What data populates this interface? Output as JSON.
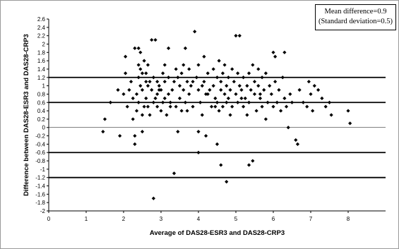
{
  "chart_data": {
    "type": "scatter",
    "xlabel": "Average of DAS28-ESR3 and DAS28-CRP3",
    "ylabel": "Difference between DAS28-ESR3 and DAS28-CRP3",
    "xlim": [
      0,
      9
    ],
    "ylim": [
      -2,
      2.6
    ],
    "x_ticks": [
      "0",
      "1",
      "2",
      "3",
      "4",
      "5",
      "6",
      "7",
      "8"
    ],
    "y_ticks": [
      "-2",
      "-1.8",
      "-1.6",
      "-1.4",
      "-1.2",
      "-1",
      "-0.8",
      "-0.6",
      "-0.4",
      "-0.2",
      "0",
      "0.2",
      "0.4",
      "0.6",
      "0.8",
      "1",
      "1.2",
      "1.4",
      "1.6",
      "1.8",
      "2",
      "2.2",
      "2.4",
      "2.6"
    ],
    "reference_lines": [
      1.2,
      0.6,
      -0.6,
      -1.2
    ],
    "annotations": [
      "Mean difference=0.9",
      "(Standard deviation=0.5)"
    ],
    "marker": "diamond",
    "points": [
      [
        1.45,
        -0.1
      ],
      [
        1.5,
        0.2
      ],
      [
        1.65,
        0.6
      ],
      [
        1.85,
        0.9
      ],
      [
        1.9,
        -0.2
      ],
      [
        2.0,
        0.8
      ],
      [
        2.05,
        1.7
      ],
      [
        2.05,
        1.3
      ],
      [
        2.1,
        0.5
      ],
      [
        2.15,
        0.9
      ],
      [
        2.2,
        1.1
      ],
      [
        2.25,
        0.7
      ],
      [
        2.25,
        0.2
      ],
      [
        2.3,
        1.9
      ],
      [
        2.3,
        -0.2
      ],
      [
        2.3,
        -0.4
      ],
      [
        2.35,
        0.4
      ],
      [
        2.35,
        0.8
      ],
      [
        2.4,
        1.9
      ],
      [
        2.4,
        1.5
      ],
      [
        2.4,
        1.2
      ],
      [
        2.4,
        0.6
      ],
      [
        2.45,
        1.8
      ],
      [
        2.45,
        1.4
      ],
      [
        2.5,
        1.3
      ],
      [
        2.5,
        0.9
      ],
      [
        2.5,
        0.3
      ],
      [
        2.5,
        -0.1
      ],
      [
        2.55,
        1.6
      ],
      [
        2.55,
        0.5
      ],
      [
        2.6,
        1.1
      ],
      [
        2.6,
        1.3
      ],
      [
        2.6,
        0.7
      ],
      [
        2.65,
        1.5
      ],
      [
        2.65,
        1.0
      ],
      [
        2.7,
        1.1
      ],
      [
        2.7,
        0.3
      ],
      [
        2.75,
        2.1
      ],
      [
        2.75,
        0.9
      ],
      [
        2.8,
        0.6
      ],
      [
        2.8,
        1.2
      ],
      [
        2.85,
        2.1
      ],
      [
        2.85,
        0.7
      ],
      [
        2.9,
        1.1
      ],
      [
        2.9,
        0.8
      ],
      [
        2.9,
        0.5
      ],
      [
        2.95,
        1.0
      ],
      [
        3.0,
        0.9
      ],
      [
        3.0,
        0.4
      ],
      [
        3.05,
        1.3
      ],
      [
        3.05,
        0.6
      ],
      [
        3.1,
        1.5
      ],
      [
        3.1,
        1.1
      ],
      [
        3.1,
        0.7
      ],
      [
        3.15,
        0.3
      ],
      [
        3.2,
        1.9
      ],
      [
        3.2,
        0.8
      ],
      [
        3.2,
        1.2
      ],
      [
        3.25,
        0.6
      ],
      [
        3.3,
        0.9
      ],
      [
        3.35,
        1.1
      ],
      [
        3.4,
        1.4
      ],
      [
        3.4,
        0.5
      ],
      [
        3.45,
        1.2
      ],
      [
        3.45,
        -0.1
      ],
      [
        3.5,
        1.0
      ],
      [
        3.5,
        0.7
      ],
      [
        3.55,
        1.3
      ],
      [
        3.55,
        0.4
      ],
      [
        3.6,
        0.9
      ],
      [
        3.6,
        1.5
      ],
      [
        3.65,
        1.9
      ],
      [
        3.65,
        0.6
      ],
      [
        3.7,
        1.1
      ],
      [
        3.7,
        0.4
      ],
      [
        3.75,
        0.8
      ],
      [
        3.75,
        1.4
      ],
      [
        3.8,
        1.0
      ],
      [
        3.85,
        0.5
      ],
      [
        3.9,
        2.3
      ],
      [
        3.95,
        1.2
      ],
      [
        4.0,
        0.9
      ],
      [
        4.0,
        1.5
      ],
      [
        4.0,
        -0.1
      ],
      [
        4.05,
        0.6
      ],
      [
        4.1,
        1.0
      ],
      [
        4.1,
        0.3
      ],
      [
        4.15,
        1.7
      ],
      [
        4.15,
        1.1
      ],
      [
        4.2,
        0.8
      ],
      [
        4.2,
        -0.2
      ],
      [
        4.25,
        1.3
      ],
      [
        4.3,
        0.9
      ],
      [
        4.35,
        0.5
      ],
      [
        4.4,
        1.0
      ],
      [
        4.4,
        1.4
      ],
      [
        4.45,
        0.7
      ],
      [
        4.5,
        1.2
      ],
      [
        4.5,
        0.6
      ],
      [
        4.55,
        1.6
      ],
      [
        4.55,
        0.4
      ],
      [
        4.6,
        1.1
      ],
      [
        4.6,
        0.9
      ],
      [
        4.65,
        1.3
      ],
      [
        4.65,
        0.5
      ],
      [
        4.7,
        1.5
      ],
      [
        4.7,
        0.8
      ],
      [
        4.75,
        1.0
      ],
      [
        4.75,
        0.6
      ],
      [
        4.8,
        1.2
      ],
      [
        4.8,
        0.7
      ],
      [
        4.85,
        0.9
      ],
      [
        4.9,
        1.4
      ],
      [
        4.9,
        0.5
      ],
      [
        4.95,
        1.1
      ],
      [
        5.0,
        2.2
      ],
      [
        5.0,
        0.8
      ],
      [
        5.05,
        1.3
      ],
      [
        5.05,
        0.6
      ],
      [
        5.1,
        2.2
      ],
      [
        5.1,
        1.0
      ],
      [
        5.15,
        0.9
      ],
      [
        5.2,
        1.2
      ],
      [
        5.2,
        0.5
      ],
      [
        5.25,
        0.7
      ],
      [
        5.3,
        1.0
      ],
      [
        5.3,
        0.3
      ],
      [
        5.35,
        1.3
      ],
      [
        5.35,
        0.6
      ],
      [
        5.4,
        0.9
      ],
      [
        5.45,
        1.5
      ],
      [
        5.45,
        -0.8
      ],
      [
        5.5,
        0.8
      ],
      [
        5.5,
        1.1
      ],
      [
        5.55,
        0.4
      ],
      [
        5.6,
        1.0
      ],
      [
        5.6,
        1.4
      ],
      [
        5.65,
        0.7
      ],
      [
        5.7,
        1.2
      ],
      [
        5.7,
        0.5
      ],
      [
        5.75,
        0.9
      ],
      [
        5.8,
        1.3
      ],
      [
        5.8,
        0.2
      ],
      [
        5.85,
        0.6
      ],
      [
        5.9,
        1.0
      ],
      [
        5.95,
        0.8
      ],
      [
        6.0,
        1.8
      ],
      [
        6.0,
        0.5
      ],
      [
        6.05,
        1.7
      ],
      [
        6.05,
        1.1
      ],
      [
        6.1,
        0.6
      ],
      [
        6.15,
        0.9
      ],
      [
        6.2,
        0.4
      ],
      [
        6.25,
        1.2
      ],
      [
        6.3,
        0.7
      ],
      [
        6.3,
        1.8
      ],
      [
        6.35,
        0.5
      ],
      [
        6.4,
        0.0
      ],
      [
        6.45,
        0.8
      ],
      [
        6.5,
        0.6
      ],
      [
        6.6,
        -0.3
      ],
      [
        6.65,
        -0.4
      ],
      [
        6.7,
        0.9
      ],
      [
        6.8,
        0.6
      ],
      [
        6.9,
        0.5
      ],
      [
        6.95,
        1.1
      ],
      [
        7.0,
        0.8
      ],
      [
        7.05,
        0.4
      ],
      [
        7.1,
        1.0
      ],
      [
        7.2,
        0.9
      ],
      [
        7.3,
        0.7
      ],
      [
        7.4,
        0.5
      ],
      [
        7.5,
        0.6
      ],
      [
        7.55,
        0.3
      ],
      [
        8.0,
        0.4
      ],
      [
        8.05,
        0.1
      ],
      [
        2.45,
        1.0
      ],
      [
        2.65,
        0.5
      ],
      [
        2.95,
        0.9
      ],
      [
        3.25,
        0.5
      ],
      [
        3.85,
        1.1
      ],
      [
        4.25,
        0.8
      ],
      [
        4.45,
        0.5
      ],
      [
        4.85,
        0.3
      ],
      [
        5.15,
        0.7
      ],
      [
        5.65,
        0.8
      ],
      [
        2.8,
        -1.7
      ],
      [
        3.35,
        -1.1
      ],
      [
        4.0,
        -0.6
      ],
      [
        4.6,
        -0.9
      ],
      [
        4.75,
        -1.3
      ],
      [
        5.35,
        -0.9
      ],
      [
        4.5,
        -0.4
      ]
    ]
  }
}
